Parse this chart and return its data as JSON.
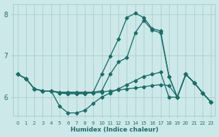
{
  "xlabel": "Humidex (Indice chaleur)",
  "xlim": [
    -0.5,
    23.5
  ],
  "ylim": [
    5.55,
    8.25
  ],
  "yticks": [
    6,
    7,
    8
  ],
  "xticks": [
    0,
    1,
    2,
    3,
    4,
    5,
    6,
    7,
    8,
    9,
    10,
    11,
    12,
    13,
    14,
    15,
    16,
    17,
    18,
    19,
    20,
    21,
    22,
    23
  ],
  "bg_color": "#cce8e8",
  "line_color": "#1a6e6a",
  "grid_color": "#aacccc",
  "line_width": 1.0,
  "marker_size": 2.5,
  "lines": [
    {
      "x": [
        0,
        1,
        2,
        3,
        4,
        5,
        6,
        7,
        8,
        9,
        10,
        11,
        12,
        13,
        14,
        15,
        16,
        17,
        18,
        19,
        20,
        21,
        22,
        23
      ],
      "y": [
        6.55,
        6.45,
        6.2,
        6.15,
        6.15,
        6.12,
        6.12,
        6.12,
        6.12,
        6.12,
        6.15,
        6.55,
        6.85,
        6.95,
        7.55,
        7.85,
        7.62,
        7.55,
        6.5,
        6.0,
        6.55,
        6.35,
        6.1,
        5.88
      ]
    },
    {
      "x": [
        0,
        1,
        2,
        3,
        4,
        5,
        6,
        7,
        8,
        9,
        10,
        11,
        12,
        13,
        14,
        15,
        16,
        17,
        18,
        19,
        20,
        21,
        22,
        23
      ],
      "y": [
        6.55,
        6.45,
        6.2,
        6.15,
        6.15,
        5.78,
        5.62,
        5.62,
        5.68,
        5.85,
        6.0,
        6.1,
        6.2,
        6.3,
        6.4,
        6.5,
        6.55,
        6.6,
        6.0,
        6.0,
        6.55,
        6.35,
        6.1,
        5.88
      ]
    },
    {
      "x": [
        0,
        1,
        2,
        3,
        4,
        5,
        6,
        7,
        8,
        9,
        10,
        11,
        12,
        13,
        14,
        15,
        16,
        17,
        18,
        19,
        20,
        21,
        22,
        23
      ],
      "y": [
        6.55,
        6.45,
        6.2,
        6.15,
        6.15,
        6.1,
        6.08,
        6.08,
        6.08,
        6.12,
        6.55,
        6.98,
        7.4,
        7.92,
        8.02,
        7.92,
        7.65,
        7.6,
        6.5,
        6.0,
        6.55,
        6.35,
        6.1,
        5.88
      ]
    },
    {
      "x": [
        0,
        1,
        2,
        3,
        4,
        5,
        6,
        7,
        8,
        9,
        10,
        11,
        12,
        13,
        14,
        15,
        16,
        17,
        18,
        19,
        20,
        21,
        22,
        23
      ],
      "y": [
        6.55,
        6.45,
        6.2,
        6.15,
        6.15,
        6.1,
        6.1,
        6.1,
        6.1,
        6.1,
        6.12,
        6.15,
        6.17,
        6.2,
        6.22,
        6.25,
        6.28,
        6.3,
        6.28,
        6.0,
        6.55,
        6.35,
        6.1,
        5.88
      ]
    }
  ]
}
